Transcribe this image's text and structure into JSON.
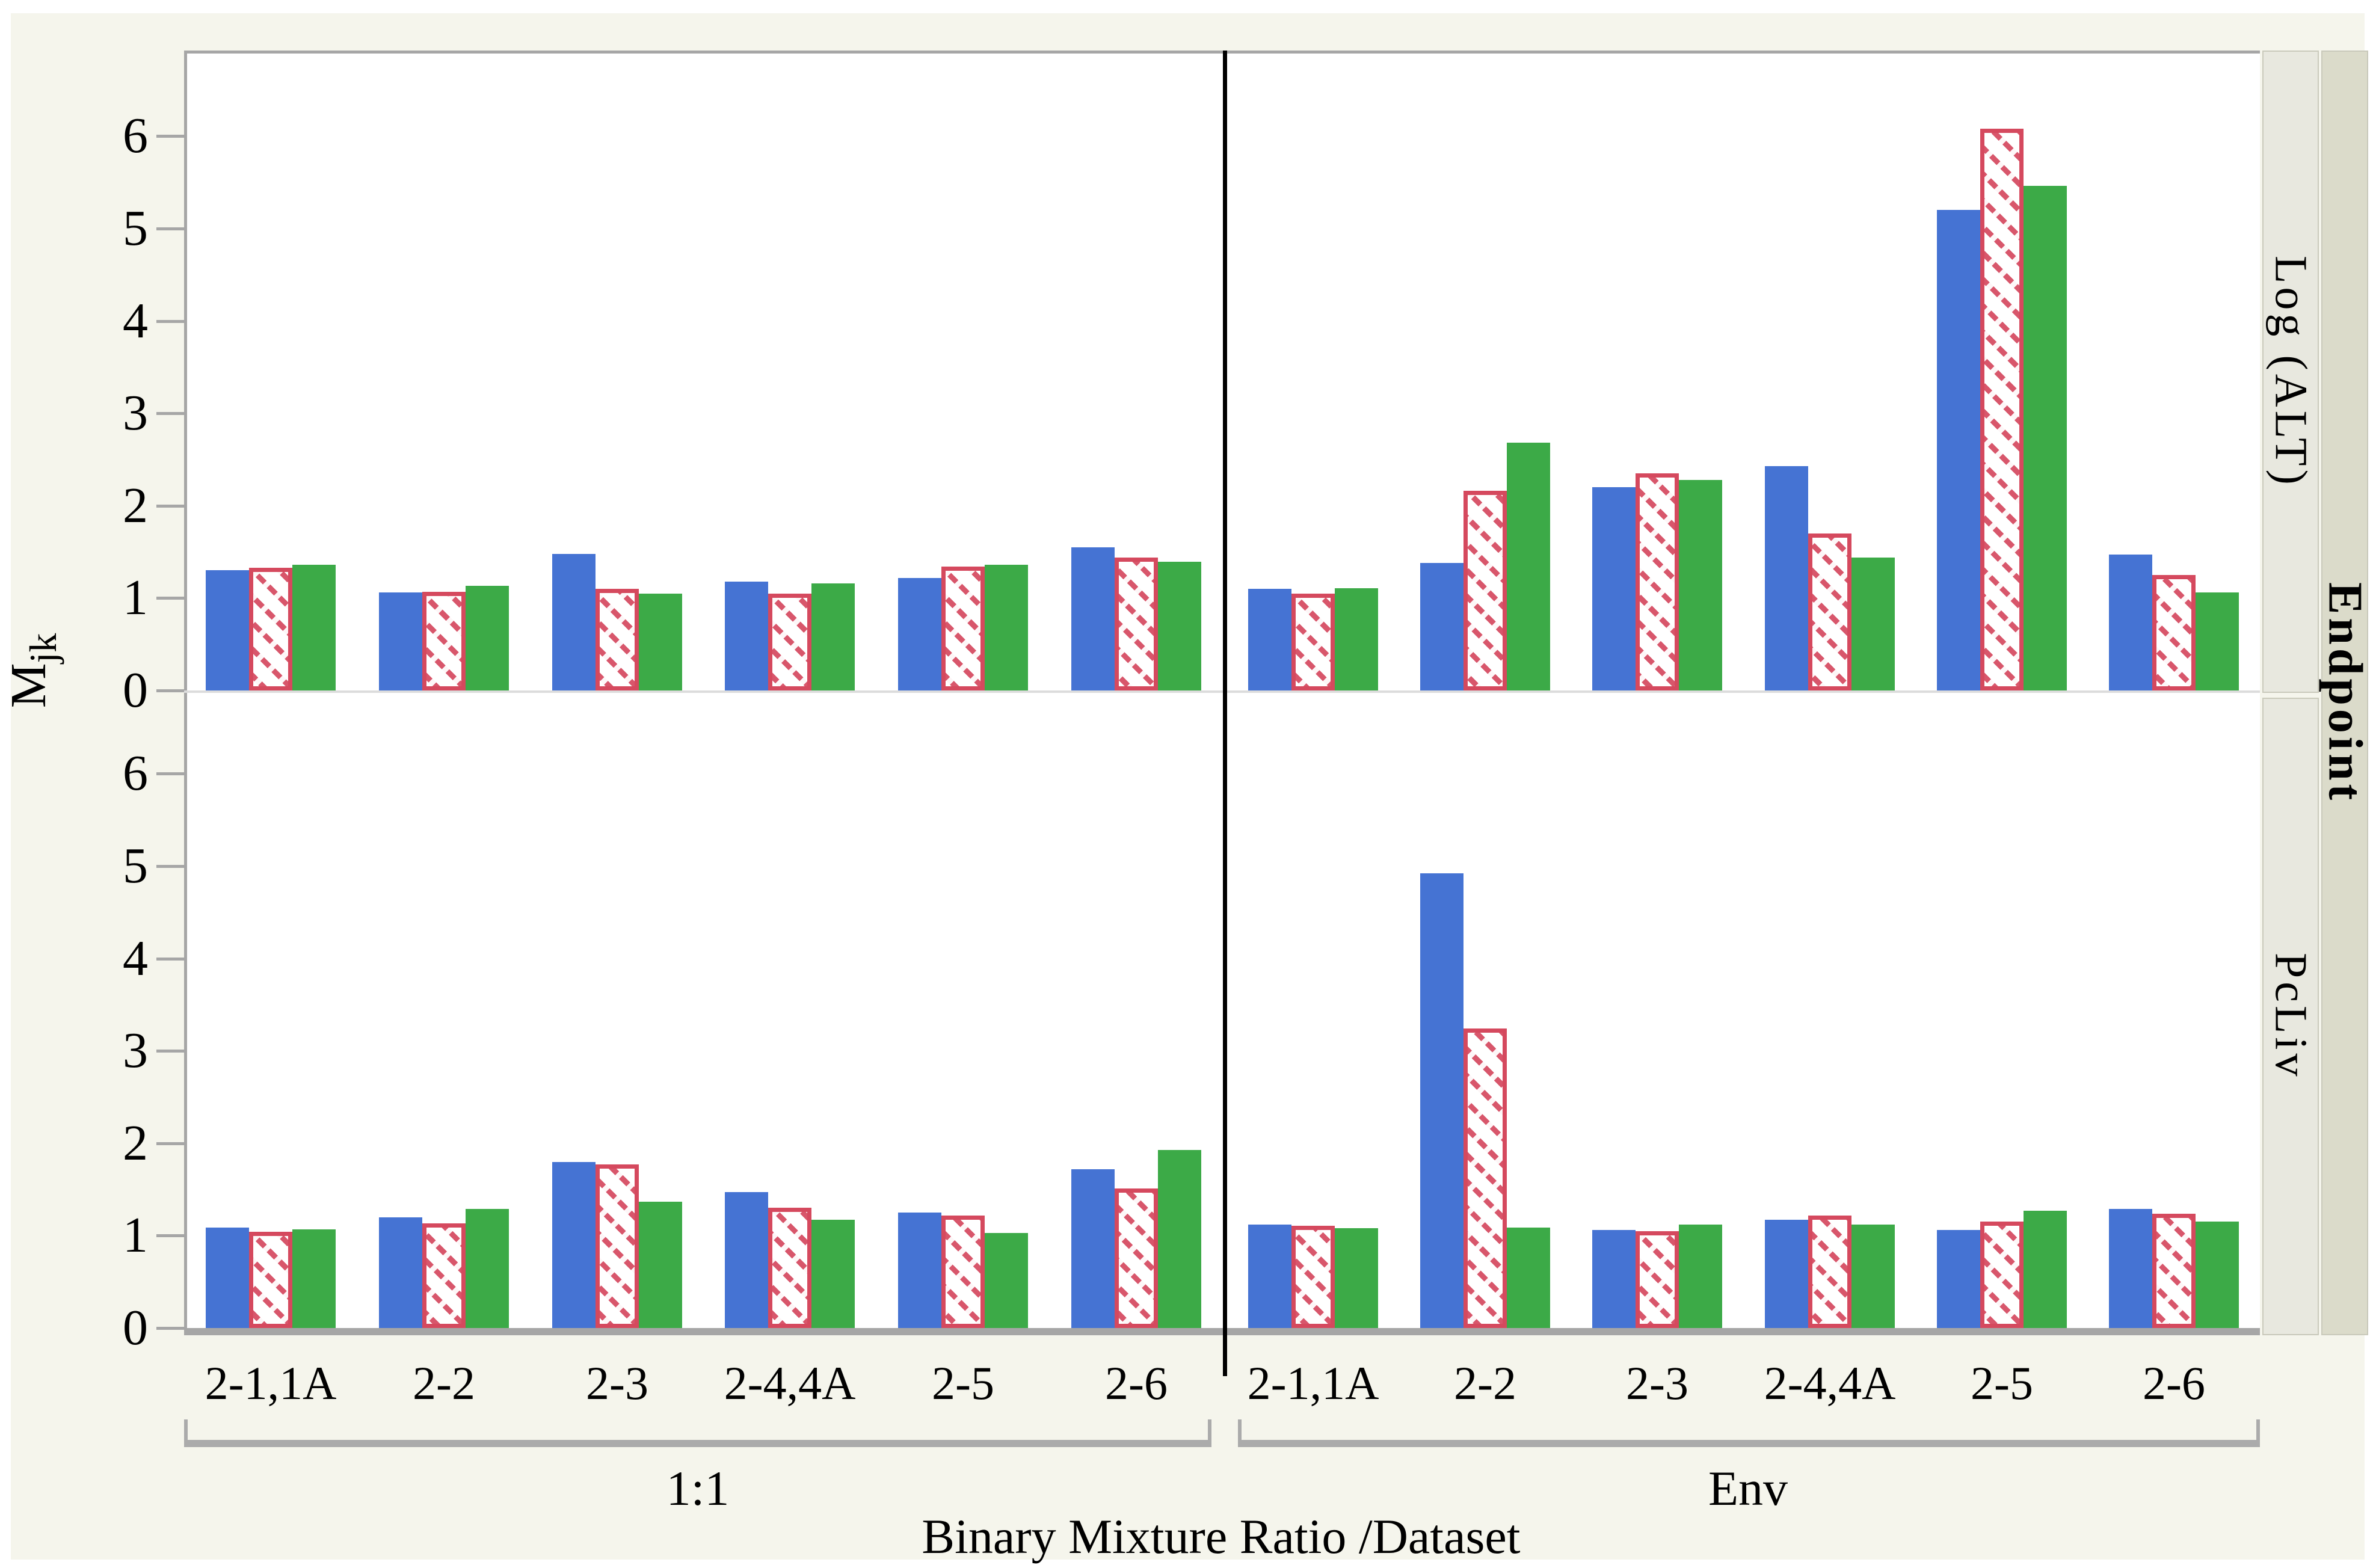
{
  "figure": {
    "y_axis_title_main": "M",
    "y_axis_title_sub": "jk",
    "x_axis_title": "Binary Mixture Ratio /Dataset",
    "outer_strip_label": "Endpoint",
    "row_strip_labels": [
      "Log (ALT)",
      "PcLiv"
    ],
    "col_group_labels": [
      "1:1",
      "Env"
    ],
    "colors": {
      "blue_bar": "#4573d3",
      "red_bar_outline": "#d5495e",
      "green_bar": "#3caa47",
      "axis_gray": "#a6a6a6",
      "panel_divider_black": "#000000",
      "figure_background": "#f5f5ec",
      "inner_strip_background": "#e8e8df",
      "outer_strip_background": "#dbdbca"
    }
  },
  "chart_data": {
    "type": "bar",
    "title": "",
    "xlabel": "Binary Mixture Ratio /Dataset",
    "ylabel": "M jk",
    "ylim": [
      0,
      6.6
    ],
    "y_ticks": [
      0,
      1,
      2,
      3,
      4,
      5,
      6
    ],
    "grid": false,
    "legend": "none",
    "facet_rows_label": "Endpoint",
    "categories": [
      "2-1,1A",
      "2-2",
      "2-3",
      "2-4,4A",
      "2-5",
      "2-6"
    ],
    "panels": [
      {
        "dataset": "1:1",
        "endpoint": "Log (ALT)",
        "series": [
          {
            "name": "blue",
            "values": [
              1.3,
              1.06,
              1.48,
              1.18,
              1.22,
              1.55
            ]
          },
          {
            "name": "red-hatched",
            "values": [
              1.33,
              1.07,
              1.1,
              1.05,
              1.34,
              1.44
            ]
          },
          {
            "name": "green",
            "values": [
              1.36,
              1.13,
              1.05,
              1.16,
              1.36,
              1.39
            ]
          }
        ]
      },
      {
        "dataset": "Env",
        "endpoint": "Log (ALT)",
        "series": [
          {
            "name": "blue",
            "values": [
              1.1,
              1.38,
              2.2,
              2.43,
              5.2,
              1.47
            ]
          },
          {
            "name": "red-hatched",
            "values": [
              1.05,
              2.16,
              2.35,
              1.7,
              6.08,
              1.25
            ]
          },
          {
            "name": "green",
            "values": [
              1.11,
              2.68,
              2.28,
              1.44,
              5.46,
              1.06
            ]
          }
        ]
      },
      {
        "dataset": "1:1",
        "endpoint": "PcLiv",
        "series": [
          {
            "name": "blue",
            "values": [
              1.09,
              1.2,
              1.8,
              1.47,
              1.25,
              1.72
            ]
          },
          {
            "name": "red-hatched",
            "values": [
              1.04,
              1.13,
              1.77,
              1.3,
              1.22,
              1.51
            ]
          },
          {
            "name": "green",
            "values": [
              1.07,
              1.29,
              1.37,
              1.17,
              1.03,
              1.93
            ]
          }
        ]
      },
      {
        "dataset": "Env",
        "endpoint": "PcLiv",
        "series": [
          {
            "name": "blue",
            "values": [
              1.12,
              4.92,
              1.06,
              1.17,
              1.06,
              1.29
            ]
          },
          {
            "name": "red-hatched",
            "values": [
              1.11,
              3.24,
              1.05,
              1.22,
              1.15,
              1.24
            ]
          },
          {
            "name": "green",
            "values": [
              1.08,
              1.09,
              1.12,
              1.12,
              1.27,
              1.15
            ]
          }
        ]
      }
    ]
  }
}
